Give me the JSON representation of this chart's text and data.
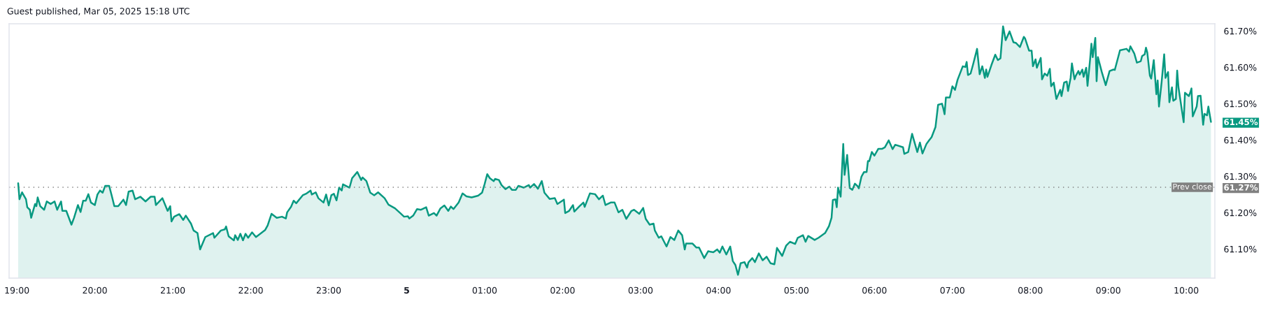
{
  "chart_data": {
    "type": "area",
    "title": "Guest published, Mar 05, 2025 15:18 UTC",
    "x": [
      "2025-03-04T19:01",
      "2025-03-04T19:02",
      "2025-03-04T19:04",
      "2025-03-04T19:07",
      "2025-03-04T19:08",
      "2025-03-04T19:10",
      "2025-03-04T19:11",
      "2025-03-04T19:14",
      "2025-03-04T19:15",
      "2025-03-04T19:16",
      "2025-03-04T19:18",
      "2025-03-04T19:21",
      "2025-03-04T19:23",
      "2025-03-04T19:26",
      "2025-03-04T19:29",
      "2025-03-04T19:31",
      "2025-03-04T19:34",
      "2025-03-04T19:35",
      "2025-03-04T19:38",
      "2025-03-04T19:42",
      "2025-03-04T19:44",
      "2025-03-04T19:47",
      "2025-03-04T19:49",
      "2025-03-04T19:51",
      "2025-03-04T19:53",
      "2025-03-04T19:55",
      "2025-03-04T19:57",
      "2025-03-04T20:00",
      "2025-03-04T20:02",
      "2025-03-04T20:04",
      "2025-03-04T20:06",
      "2025-03-04T20:08",
      "2025-03-04T20:11",
      "2025-03-04T20:13",
      "2025-03-04T20:15",
      "2025-03-04T20:18",
      "2025-03-04T20:22",
      "2025-03-04T20:24",
      "2025-03-04T20:26",
      "2025-03-04T20:29",
      "2025-03-04T20:31",
      "2025-03-04T20:35",
      "2025-03-04T20:39",
      "2025-03-04T20:43",
      "2025-03-04T20:46",
      "2025-03-04T20:47",
      "2025-03-04T20:52",
      "2025-03-04T20:56",
      "2025-03-04T20:58",
      "2025-03-04T20:59",
      "2025-03-04T21:01",
      "2025-03-04T21:05",
      "2025-03-04T21:08",
      "2025-03-04T21:10",
      "2025-03-04T21:14",
      "2025-03-04T21:16",
      "2025-03-04T21:19",
      "2025-03-04T21:21",
      "2025-03-04T21:25",
      "2025-03-04T21:31",
      "2025-03-04T21:32",
      "2025-03-04T21:37",
      "2025-03-04T21:40",
      "2025-03-04T21:41",
      "2025-03-04T21:43",
      "2025-03-04T21:47",
      "2025-03-04T21:48",
      "2025-03-04T21:50",
      "2025-03-04T21:52",
      "2025-03-04T21:54",
      "2025-03-04T21:56",
      "2025-03-04T21:58",
      "2025-03-04T22:01",
      "2025-03-04T22:04",
      "2025-03-04T22:07",
      "2025-03-04T22:11",
      "2025-03-04T22:13",
      "2025-03-04T22:16",
      "2025-03-04T22:20",
      "2025-03-04T22:24",
      "2025-03-04T22:27",
      "2025-03-04T22:28",
      "2025-03-04T22:31",
      "2025-03-04T22:33",
      "2025-03-04T22:35",
      "2025-03-04T22:40",
      "2025-03-04T22:43",
      "2025-03-04T22:46",
      "2025-03-04T22:47",
      "2025-03-04T22:50",
      "2025-03-04T22:52",
      "2025-03-04T22:56",
      "2025-03-04T22:58",
      "2025-03-04T23:00",
      "2025-03-04T23:02",
      "2025-03-04T23:04",
      "2025-03-04T23:06",
      "2025-03-04T23:08",
      "2025-03-04T23:10",
      "2025-03-04T23:11",
      "2025-03-04T23:16",
      "2025-03-04T23:18",
      "2025-03-04T23:22",
      "2025-03-04T23:25",
      "2025-03-04T23:26",
      "2025-03-04T23:29",
      "2025-03-04T23:32",
      "2025-03-04T23:35",
      "2025-03-04T23:38",
      "2025-03-04T23:43",
      "2025-03-04T23:46",
      "2025-03-04T23:51",
      "2025-03-04T23:55",
      "2025-03-04T23:58",
      "2025-03-05T00:01",
      "2025-03-05T00:02",
      "2025-03-05T00:05",
      "2025-03-05T00:08",
      "2025-03-05T00:11",
      "2025-03-05T00:15",
      "2025-03-05T00:17",
      "2025-03-05T00:21",
      "2025-03-05T00:23",
      "2025-03-05T00:26",
      "2025-03-05T00:29",
      "2025-03-05T00:32",
      "2025-03-05T00:34",
      "2025-03-05T00:36",
      "2025-03-05T00:40",
      "2025-03-05T00:43",
      "2025-03-05T00:46",
      "2025-03-05T00:50",
      "2025-03-05T00:55",
      "2025-03-05T00:58",
      "2025-03-05T01:00",
      "2025-03-05T01:02",
      "2025-03-05T01:04",
      "2025-03-05T01:07",
      "2025-03-05T01:08",
      "2025-03-05T01:11",
      "2025-03-05T01:13",
      "2025-03-05T01:16",
      "2025-03-05T01:19",
      "2025-03-05T01:21",
      "2025-03-05T01:24",
      "2025-03-05T01:26",
      "2025-03-05T01:30",
      "2025-03-05T01:34",
      "2025-03-05T01:35",
      "2025-03-05T01:38",
      "2025-03-05T01:41",
      "2025-03-05T01:44",
      "2025-03-05T01:46",
      "2025-03-05T01:50",
      "2025-03-05T01:54",
      "2025-03-05T01:56",
      "2025-03-05T02:01",
      "2025-03-05T02:02",
      "2025-03-05T02:05",
      "2025-03-05T02:08",
      "2025-03-05T02:09",
      "2025-03-05T02:13",
      "2025-03-05T02:16",
      "2025-03-05T02:17",
      "2025-03-05T02:21",
      "2025-03-05T02:25",
      "2025-03-05T02:28",
      "2025-03-05T02:31",
      "2025-03-05T02:33",
      "2025-03-05T02:37",
      "2025-03-05T02:40",
      "2025-03-05T02:43",
      "2025-03-05T02:46",
      "2025-03-05T02:49",
      "2025-03-05T02:53",
      "2025-03-05T02:55",
      "2025-03-05T02:59",
      "2025-03-05T03:02",
      "2025-03-05T03:04",
      "2025-03-05T03:07",
      "2025-03-05T03:10",
      "2025-03-05T03:11",
      "2025-03-05T03:14",
      "2025-03-05T03:16",
      "2025-03-05T03:20",
      "2025-03-05T03:23",
      "2025-03-05T03:26",
      "2025-03-05T03:29",
      "2025-03-05T03:32",
      "2025-03-05T03:34",
      "2025-03-05T03:35",
      "2025-03-05T03:40",
      "2025-03-05T03:43",
      "2025-03-05T03:45",
      "2025-03-05T03:49",
      "2025-03-05T03:52",
      "2025-03-05T03:56",
      "2025-03-05T03:59",
      "2025-03-05T04:01",
      "2025-03-05T04:03",
      "2025-03-05T04:06",
      "2025-03-05T04:09",
      "2025-03-05T04:11",
      "2025-03-05T04:13",
      "2025-03-05T04:15",
      "2025-03-05T04:17",
      "2025-03-05T04:20",
      "2025-03-05T04:22",
      "2025-03-05T04:23",
      "2025-03-05T04:26",
      "2025-03-05T04:28",
      "2025-03-05T04:31",
      "2025-03-05T04:34",
      "2025-03-05T04:37",
      "2025-03-05T04:40",
      "2025-03-05T04:43",
      "2025-03-05T04:45",
      "2025-03-05T04:49",
      "2025-03-05T04:52",
      "2025-03-05T04:55",
      "2025-03-05T04:59",
      "2025-03-05T05:01",
      "2025-03-05T05:05",
      "2025-03-05T05:07",
      "2025-03-05T05:09",
      "2025-03-05T05:14",
      "2025-03-05T05:17",
      "2025-03-05T05:22",
      "2025-03-05T05:25",
      "2025-03-05T05:27",
      "2025-03-05T05:28",
      "2025-03-05T05:30",
      "2025-03-05T05:31",
      "2025-03-05T05:32",
      "2025-03-05T05:34",
      "2025-03-05T05:36",
      "2025-03-05T05:37",
      "2025-03-05T05:39",
      "2025-03-05T05:41",
      "2025-03-05T05:43",
      "2025-03-05T05:45",
      "2025-03-05T05:47",
      "2025-03-05T05:48",
      "2025-03-05T05:50",
      "2025-03-05T05:52",
      "2025-03-05T05:54",
      "2025-03-05T05:55",
      "2025-03-05T05:56",
      "2025-03-05T05:58",
      "2025-03-05T06:00",
      "2025-03-05T06:03",
      "2025-03-05T06:06",
      "2025-03-05T06:08",
      "2025-03-05T06:11",
      "2025-03-05T06:14",
      "2025-03-05T06:16",
      "2025-03-05T06:22",
      "2025-03-05T06:23",
      "2025-03-05T06:26",
      "2025-03-05T06:29",
      "2025-03-05T06:33",
      "2025-03-05T06:35",
      "2025-03-05T06:37",
      "2025-03-05T06:40",
      "2025-03-05T06:42",
      "2025-03-05T06:44",
      "2025-03-05T06:47",
      "2025-03-05T06:49",
      "2025-03-05T06:52",
      "2025-03-05T06:53",
      "2025-03-05T06:54",
      "2025-03-05T06:55",
      "2025-03-05T06:58",
      "2025-03-05T07:00",
      "2025-03-05T07:02",
      "2025-03-05T07:04",
      "2025-03-05T07:08",
      "2025-03-05T07:10",
      "2025-03-05T07:11",
      "2025-03-05T07:12",
      "2025-03-05T07:14",
      "2025-03-05T07:16",
      "2025-03-05T07:19",
      "2025-03-05T07:21",
      "2025-03-05T07:23",
      "2025-03-05T07:25",
      "2025-03-05T07:26",
      "2025-03-05T07:27",
      "2025-03-05T07:30",
      "2025-03-05T07:33",
      "2025-03-05T07:35",
      "2025-03-05T07:37",
      "2025-03-05T07:39",
      "2025-03-05T07:41",
      "2025-03-05T07:44",
      "2025-03-05T07:47",
      "2025-03-05T07:49",
      "2025-03-05T07:52",
      "2025-03-05T07:55",
      "2025-03-05T07:56",
      "2025-03-05T07:59",
      "2025-03-05T08:01",
      "2025-03-05T08:02",
      "2025-03-05T08:04",
      "2025-03-05T08:05",
      "2025-03-05T08:08",
      "2025-03-05T08:09",
      "2025-03-05T08:11",
      "2025-03-05T08:13",
      "2025-03-05T08:15",
      "2025-03-05T08:16",
      "2025-03-05T08:18",
      "2025-03-05T08:20",
      "2025-03-05T08:23",
      "2025-03-05T08:24",
      "2025-03-05T08:26",
      "2025-03-05T08:28",
      "2025-03-05T08:29",
      "2025-03-05T08:31",
      "2025-03-05T08:32",
      "2025-03-05T08:34",
      "2025-03-05T08:35",
      "2025-03-05T08:37",
      "2025-03-05T08:38",
      "2025-03-05T08:40",
      "2025-03-05T08:41",
      "2025-03-05T08:43",
      "2025-03-05T08:44",
      "2025-03-05T08:46",
      "2025-03-05T08:47",
      "2025-03-05T08:48",
      "2025-03-05T08:50",
      "2025-03-05T08:51",
      "2025-03-05T08:52",
      "2025-03-05T08:55",
      "2025-03-05T08:58",
      "2025-03-05T09:01",
      "2025-03-05T09:04",
      "2025-03-05T09:05",
      "2025-03-05T09:09",
      "2025-03-05T09:14",
      "2025-03-05T09:16",
      "2025-03-05T09:17",
      "2025-03-05T09:20",
      "2025-03-05T09:22",
      "2025-03-05T09:25",
      "2025-03-05T09:26",
      "2025-03-05T09:28",
      "2025-03-05T09:29",
      "2025-03-05T09:30",
      "2025-03-05T09:32",
      "2025-03-05T09:33",
      "2025-03-05T09:35",
      "2025-03-05T09:37",
      "2025-03-05T09:38",
      "2025-03-05T09:39",
      "2025-03-05T09:41",
      "2025-03-05T09:43",
      "2025-03-05T09:44",
      "2025-03-05T09:46",
      "2025-03-05T09:47",
      "2025-03-05T09:49",
      "2025-03-05T09:50",
      "2025-03-05T09:52",
      "2025-03-05T09:53",
      "2025-03-05T09:54",
      "2025-03-05T09:58",
      "2025-03-05T09:59",
      "2025-03-05T10:02",
      "2025-03-05T10:03",
      "2025-03-05T10:04",
      "2025-03-05T10:05",
      "2025-03-05T10:08",
      "2025-03-05T10:09",
      "2025-03-05T10:11",
      "2025-03-05T10:13",
      "2025-03-05T10:14",
      "2025-03-05T10:16",
      "2025-03-05T10:17",
      "2025-03-05T10:19"
    ],
    "series": [
      {
        "color": "#089981",
        "values": [
          61.281,
          61.237,
          61.256,
          61.237,
          61.215,
          61.208,
          61.186,
          61.224,
          61.218,
          61.242,
          61.218,
          61.208,
          61.231,
          61.224,
          61.231,
          61.208,
          61.231,
          61.205,
          61.205,
          61.167,
          61.186,
          61.221,
          61.202,
          61.233,
          61.233,
          61.251,
          61.228,
          61.221,
          61.25,
          61.261,
          61.255,
          61.274,
          61.274,
          61.247,
          61.218,
          61.218,
          61.236,
          61.221,
          61.258,
          61.261,
          61.237,
          61.244,
          61.231,
          61.244,
          61.244,
          61.221,
          61.24,
          61.205,
          61.218,
          61.176,
          61.189,
          61.196,
          61.18,
          61.192,
          61.17,
          61.151,
          61.144,
          61.099,
          61.133,
          61.144,
          61.131,
          61.151,
          61.154,
          61.162,
          61.135,
          61.124,
          61.138,
          61.125,
          61.142,
          61.124,
          61.142,
          61.131,
          61.146,
          61.133,
          61.141,
          61.152,
          61.165,
          61.197,
          61.186,
          61.189,
          61.184,
          61.201,
          61.216,
          61.233,
          61.226,
          61.248,
          61.253,
          61.261,
          61.25,
          61.256,
          61.24,
          61.228,
          61.25,
          61.22,
          61.248,
          61.252,
          61.234,
          61.269,
          61.261,
          61.278,
          61.269,
          61.295,
          61.312,
          61.29,
          61.297,
          61.287,
          61.255,
          61.248,
          61.256,
          61.24,
          61.222,
          61.212,
          61.199,
          61.189,
          61.19,
          61.184,
          61.192,
          61.21,
          61.208,
          61.215,
          61.192,
          61.199,
          61.192,
          61.212,
          61.22,
          61.205,
          61.217,
          61.21,
          61.228,
          61.253,
          61.245,
          61.242,
          61.247,
          61.255,
          61.279,
          61.306,
          61.295,
          61.287,
          61.293,
          61.29,
          61.276,
          61.265,
          61.272,
          61.263,
          61.263,
          61.274,
          61.269,
          61.276,
          61.269,
          61.279,
          61.266,
          61.287,
          61.255,
          61.238,
          61.24,
          61.224,
          61.236,
          61.199,
          61.205,
          61.221,
          61.203,
          61.218,
          61.228,
          61.216,
          61.253,
          61.251,
          61.237,
          61.247,
          61.221,
          61.228,
          61.228,
          61.201,
          61.208,
          61.183,
          61.205,
          61.208,
          61.197,
          61.213,
          61.183,
          61.167,
          61.17,
          61.151,
          61.131,
          61.135,
          61.107,
          61.133,
          61.125,
          61.151,
          61.138,
          61.099,
          61.115,
          61.115,
          61.104,
          61.104,
          61.075,
          61.094,
          61.091,
          61.099,
          61.09,
          61.107,
          61.085,
          61.107,
          61.067,
          61.056,
          61.029,
          61.061,
          61.064,
          61.049,
          61.063,
          61.075,
          61.064,
          61.088,
          61.069,
          61.079,
          61.061,
          61.058,
          61.103,
          61.081,
          61.109,
          61.12,
          61.114,
          61.131,
          61.138,
          61.12,
          61.136,
          61.125,
          61.131,
          61.144,
          61.163,
          61.186,
          61.235,
          61.237,
          61.215,
          61.269,
          61.244,
          61.389,
          61.304,
          61.359,
          61.268,
          61.263,
          61.28,
          61.273,
          61.267,
          61.299,
          61.312,
          61.312,
          61.342,
          61.342,
          61.367,
          61.357,
          61.376,
          61.376,
          61.38,
          61.399,
          61.375,
          61.387,
          61.38,
          61.362,
          61.367,
          61.417,
          61.367,
          61.393,
          61.363,
          61.389,
          61.399,
          61.408,
          61.436,
          61.497,
          61.5,
          61.487,
          61.471,
          61.517,
          61.517,
          61.548,
          61.538,
          61.566,
          61.603,
          61.601,
          61.615,
          61.579,
          61.583,
          61.609,
          61.651,
          61.581,
          61.603,
          61.571,
          61.594,
          61.574,
          61.606,
          61.635,
          61.62,
          61.625,
          61.713,
          61.675,
          61.699,
          61.669,
          61.667,
          61.656,
          61.684,
          61.679,
          61.646,
          61.646,
          61.603,
          61.622,
          61.599,
          61.626,
          61.567,
          61.583,
          61.577,
          61.596,
          61.548,
          61.558,
          61.513,
          61.538,
          61.521,
          61.558,
          61.561,
          61.535,
          61.571,
          61.611,
          61.567,
          61.577,
          61.59,
          61.58,
          61.594,
          61.574,
          61.599,
          61.549,
          61.622,
          61.665,
          61.628,
          61.681,
          61.562,
          61.628,
          61.587,
          61.551,
          61.59,
          61.594,
          61.593,
          61.647,
          61.651,
          61.643,
          61.658,
          61.638,
          61.613,
          61.617,
          61.631,
          61.636,
          61.654,
          61.641,
          61.577,
          61.569,
          61.62,
          61.526,
          61.564,
          61.492,
          61.558,
          61.636,
          61.571,
          61.587,
          61.504,
          61.545,
          61.508,
          61.513,
          61.591,
          61.545,
          61.449,
          61.53,
          61.521,
          61.53,
          61.542,
          61.465,
          61.492,
          61.521,
          61.522,
          61.442,
          61.472,
          61.468,
          61.492,
          61.45
        ]
      }
    ],
    "xlim": [
      "2025-03-04T18:54",
      "2025-03-05T10:22"
    ],
    "xticks": [
      {
        "value": "2025-03-04T19:00",
        "label": "19:00"
      },
      {
        "value": "2025-03-04T20:00",
        "label": "20:00"
      },
      {
        "value": "2025-03-04T21:00",
        "label": "21:00"
      },
      {
        "value": "2025-03-04T22:00",
        "label": "22:00"
      },
      {
        "value": "2025-03-04T23:00",
        "label": "23:00"
      },
      {
        "value": "2025-03-05T00:00",
        "label": "5"
      },
      {
        "value": "2025-03-05T01:00",
        "label": "01:00"
      },
      {
        "value": "2025-03-05T02:00",
        "label": "02:00"
      },
      {
        "value": "2025-03-05T03:00",
        "label": "03:00"
      },
      {
        "value": "2025-03-05T04:00",
        "label": "04:00"
      },
      {
        "value": "2025-03-05T05:00",
        "label": "05:00"
      },
      {
        "value": "2025-03-05T06:00",
        "label": "06:00"
      },
      {
        "value": "2025-03-05T07:00",
        "label": "07:00"
      },
      {
        "value": "2025-03-05T08:00",
        "label": "08:00"
      },
      {
        "value": "2025-03-05T09:00",
        "label": "09:00"
      },
      {
        "value": "2025-03-05T10:00",
        "label": "10:00"
      }
    ],
    "ylim": [
      61.02,
      61.72
    ],
    "yticks": [
      {
        "value": 61.1,
        "label": "61.10%"
      },
      {
        "value": 61.2,
        "label": "61.20%"
      },
      {
        "value": 61.27,
        "label": "61.27%"
      },
      {
        "value": 61.3,
        "label": "61.30%"
      },
      {
        "value": 61.4,
        "label": "61.40%"
      },
      {
        "value": 61.45,
        "label": "61.45%"
      },
      {
        "value": 61.5,
        "label": "61.50%"
      },
      {
        "value": 61.6,
        "label": "61.60%"
      },
      {
        "value": 61.7,
        "label": "61.70%"
      }
    ],
    "ref_lines": [
      {
        "axis": "y",
        "value": 61.27,
        "label": "Prev close",
        "color": "#808080",
        "line_style": "dotted"
      }
    ],
    "grid": false
  }
}
